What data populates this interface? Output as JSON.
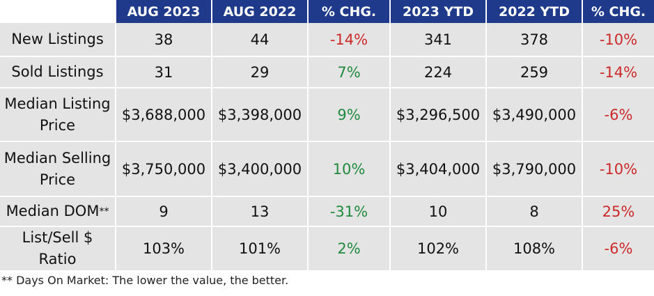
{
  "table": {
    "headers": [
      "",
      "AUG 2023",
      "AUG 2022",
      "% CHG.",
      "2023 YTD",
      "2022 YTD",
      "% CHG."
    ],
    "rows": [
      {
        "label": "New Listings",
        "aug2023": "38",
        "aug2022": "44",
        "chg1": "-14%",
        "ytd2023": "341",
        "ytd2022": "378",
        "chg2": "-10%"
      },
      {
        "label": "Sold Listings",
        "aug2023": "31",
        "aug2022": "29",
        "chg1": "7%",
        "ytd2023": "224",
        "ytd2022": "259",
        "chg2": "-14%"
      },
      {
        "label": "Median Listing Price",
        "aug2023": "$3,688,000",
        "aug2022": "$3,398,000",
        "chg1": "9%",
        "ytd2023": "$3,296,500",
        "ytd2022": "$3,490,000",
        "chg2": "-6%"
      },
      {
        "label": "Median Selling Price",
        "aug2023": "$3,750,000",
        "aug2022": "$3,400,000",
        "chg1": "10%",
        "ytd2023": "$3,404,000",
        "ytd2022": "$3,790,000",
        "chg2": "-10%"
      },
      {
        "label": "Median DOM",
        "label_mark": "**",
        "aug2023": "9",
        "aug2022": "13",
        "chg1": "-31%",
        "ytd2023": "10",
        "ytd2022": "8",
        "chg2": "25%"
      },
      {
        "label": "List/Sell $ Ratio",
        "aug2023": "103%",
        "aug2022": "101%",
        "chg1": "2%",
        "ytd2023": "102%",
        "ytd2022": "108%",
        "chg2": "-6%"
      }
    ]
  },
  "footnote": "** Days On Market: The lower the value, the better.",
  "colors": {
    "header_bg": "#1f3a8a",
    "cell_bg": "#e4e4e4",
    "negative": "#cc2a2a",
    "positive": "#1f8a3e"
  }
}
